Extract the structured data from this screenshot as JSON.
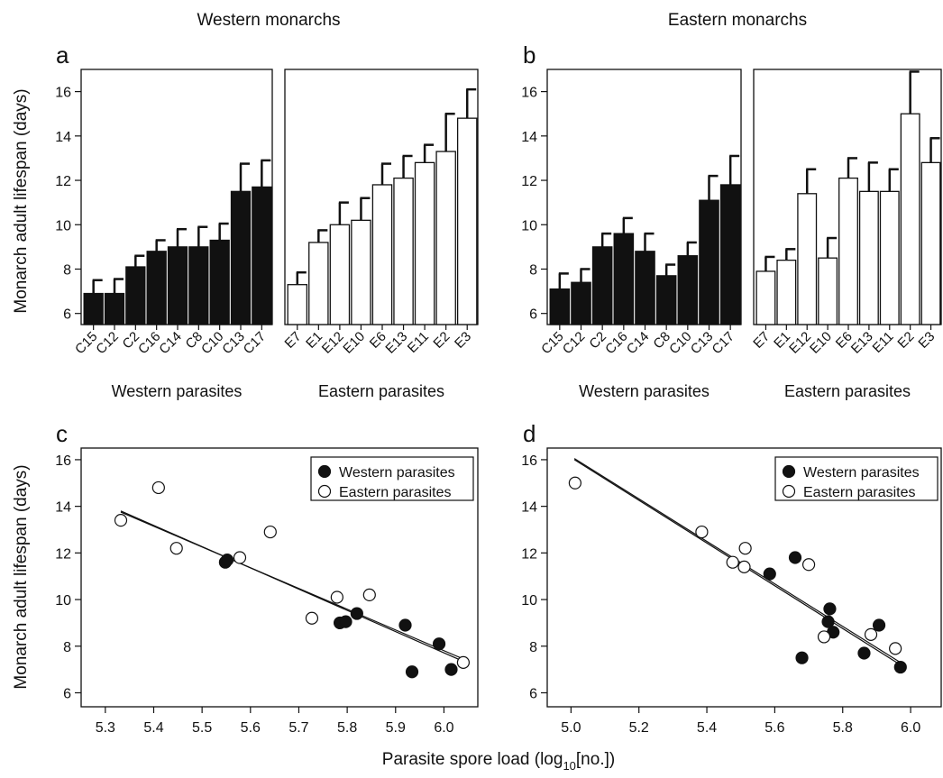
{
  "figure": {
    "col_titles": [
      "Western monarchs",
      "Eastern monarchs"
    ],
    "ylabel": "Monarch adult lifespan (days)",
    "xlabel_prefix": "Parasite spore load (log",
    "xlabel_sub": "10",
    "xlabel_suffix": "[no.])",
    "colors": {
      "western": "#111111",
      "eastern": "#ffffff",
      "stroke": "#111111"
    }
  },
  "chart_data": [
    {
      "type": "bar",
      "panel_label": "a",
      "title": "Western monarchs",
      "ylabel": "Monarch adult lifespan (days)",
      "ylim": [
        5.5,
        17
      ],
      "yticks": [
        6,
        8,
        10,
        12,
        14,
        16
      ],
      "groups": [
        {
          "name": "Western parasites",
          "fill": "#111111",
          "categories": [
            "C15",
            "C12",
            "C2",
            "C16",
            "C14",
            "C8",
            "C10",
            "C13",
            "C17"
          ],
          "values": [
            6.9,
            6.9,
            8.1,
            8.8,
            9.0,
            9.0,
            9.3,
            11.5,
            11.7
          ],
          "errors": [
            0.6,
            0.65,
            0.5,
            0.5,
            0.8,
            0.9,
            0.75,
            1.25,
            1.2
          ]
        },
        {
          "name": "Eastern parasites",
          "fill": "#ffffff",
          "categories": [
            "E7",
            "E1",
            "E12",
            "E10",
            "E6",
            "E13",
            "E11",
            "E2",
            "E3"
          ],
          "values": [
            7.3,
            9.2,
            10.0,
            10.2,
            11.8,
            12.1,
            12.8,
            13.3,
            14.8
          ],
          "errors": [
            0.55,
            0.55,
            1.0,
            1.0,
            0.95,
            1.0,
            0.8,
            1.7,
            1.3
          ]
        }
      ]
    },
    {
      "type": "bar",
      "panel_label": "b",
      "title": "Eastern monarchs",
      "ylabel": "",
      "ylim": [
        5.5,
        17
      ],
      "yticks": [
        6,
        8,
        10,
        12,
        14,
        16
      ],
      "groups": [
        {
          "name": "Western parasites",
          "fill": "#111111",
          "categories": [
            "C15",
            "C12",
            "C2",
            "C16",
            "C14",
            "C8",
            "C10",
            "C13",
            "C17"
          ],
          "values": [
            7.1,
            7.4,
            9.0,
            9.6,
            8.8,
            7.7,
            8.6,
            11.1,
            11.8
          ],
          "errors": [
            0.7,
            0.6,
            0.6,
            0.7,
            0.8,
            0.5,
            0.6,
            1.1,
            1.3
          ]
        },
        {
          "name": "Eastern parasites",
          "fill": "#ffffff",
          "categories": [
            "E7",
            "E1",
            "E12",
            "E10",
            "E6",
            "E13",
            "E11",
            "E2",
            "E3"
          ],
          "values": [
            7.9,
            8.4,
            11.4,
            8.5,
            12.1,
            11.5,
            11.5,
            15.0,
            12.8
          ],
          "errors": [
            0.65,
            0.5,
            1.1,
            0.9,
            0.9,
            1.3,
            1.0,
            1.9,
            1.1
          ]
        }
      ]
    },
    {
      "type": "scatter",
      "panel_label": "c",
      "xlabel": "Parasite spore load (log10[no.])",
      "ylabel": "Monarch adult lifespan (days)",
      "xlim": [
        5.25,
        6.07
      ],
      "ylim": [
        5.4,
        16.5
      ],
      "xticks": [
        5.3,
        5.4,
        5.5,
        5.6,
        5.7,
        5.8,
        5.9,
        6.0
      ],
      "xtick_labels": [
        "5.3",
        "5.4",
        "5.5",
        "5.6",
        "5.7",
        "5.8",
        "5.9",
        "6.0"
      ],
      "yticks": [
        6,
        8,
        10,
        12,
        14,
        16
      ],
      "legend": {
        "position": "top-right"
      },
      "series": [
        {
          "name": "Western parasites",
          "marker": "filled-circle",
          "points": [
            [
              5.548,
              11.6
            ],
            [
              5.552,
              11.7
            ],
            [
              5.785,
              9.0
            ],
            [
              5.797,
              9.05
            ],
            [
              5.82,
              9.4
            ],
            [
              5.92,
              8.9
            ],
            [
              5.934,
              6.9
            ],
            [
              5.99,
              8.1
            ],
            [
              6.015,
              7.0
            ]
          ]
        },
        {
          "name": "Eastern parasites",
          "marker": "open-circle",
          "points": [
            [
              5.332,
              13.4
            ],
            [
              5.41,
              14.8
            ],
            [
              5.447,
              12.2
            ],
            [
              5.578,
              11.8
            ],
            [
              5.641,
              12.9
            ],
            [
              5.727,
              9.2
            ],
            [
              5.779,
              10.1
            ],
            [
              5.846,
              10.2
            ],
            [
              6.04,
              7.3
            ]
          ]
        }
      ],
      "trendlines": [
        {
          "x": [
            5.332,
            6.04
          ],
          "y": [
            13.8,
            7.35
          ]
        },
        {
          "x": [
            5.332,
            6.04
          ],
          "y": [
            13.75,
            7.45
          ]
        }
      ]
    },
    {
      "type": "scatter",
      "panel_label": "d",
      "xlabel": "Parasite spore load (log10[no.])",
      "ylabel": "",
      "xlim": [
        4.93,
        6.09
      ],
      "ylim": [
        5.4,
        16.5
      ],
      "xticks": [
        5.0,
        5.2,
        5.4,
        5.6,
        5.8,
        6.0
      ],
      "xtick_labels": [
        "5.0",
        "5.2",
        "5.4",
        "5.6",
        "5.8",
        "6.0"
      ],
      "yticks": [
        6,
        8,
        10,
        12,
        14,
        16
      ],
      "legend": {
        "position": "top-right"
      },
      "series": [
        {
          "name": "Western parasites",
          "marker": "filled-circle",
          "points": [
            [
              5.585,
              11.1
            ],
            [
              5.66,
              11.8
            ],
            [
              5.68,
              7.5
            ],
            [
              5.757,
              9.05
            ],
            [
              5.762,
              9.6
            ],
            [
              5.772,
              8.6
            ],
            [
              5.863,
              7.7
            ],
            [
              5.907,
              8.9
            ],
            [
              5.97,
              7.1
            ]
          ]
        },
        {
          "name": "Eastern parasites",
          "marker": "open-circle",
          "points": [
            [
              5.012,
              15.0
            ],
            [
              5.385,
              12.9
            ],
            [
              5.476,
              11.6
            ],
            [
              5.51,
              11.4
            ],
            [
              5.513,
              12.2
            ],
            [
              5.7,
              11.5
            ],
            [
              5.745,
              8.4
            ],
            [
              5.883,
              8.5
            ],
            [
              5.955,
              7.9
            ]
          ]
        }
      ],
      "trendlines": [
        {
          "x": [
            5.01,
            5.97
          ],
          "y": [
            16.0,
            7.2
          ]
        },
        {
          "x": [
            5.01,
            5.97
          ],
          "y": [
            16.05,
            7.3
          ]
        }
      ]
    }
  ]
}
